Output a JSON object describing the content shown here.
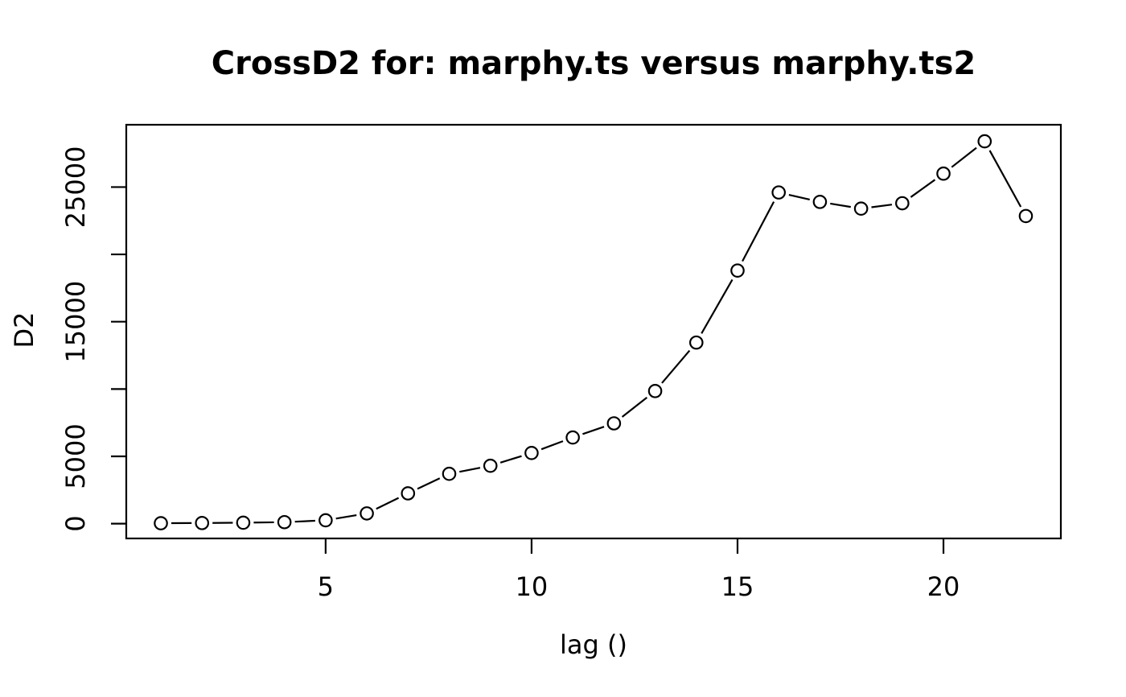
{
  "figure": {
    "title": "CrossD2 for: marphy.ts versus marphy.ts2",
    "x_axis_label": "lag ()",
    "y_axis_label": "D2"
  },
  "chart_data": {
    "type": "line",
    "title": "CrossD2 for: marphy.ts versus marphy.ts2",
    "xlabel": "lag ()",
    "ylabel": "D2",
    "x": [
      1,
      2,
      3,
      4,
      5,
      6,
      7,
      8,
      9,
      10,
      11,
      12,
      13,
      14,
      15,
      16,
      17,
      18,
      19,
      20,
      21,
      22
    ],
    "y": [
      30,
      45,
      70,
      110,
      250,
      760,
      2250,
      3700,
      4300,
      5250,
      6400,
      7450,
      9850,
      13450,
      18800,
      24600,
      23900,
      23400,
      23800,
      26000,
      28400,
      22850
    ],
    "xticks": [
      5,
      10,
      15,
      20
    ],
    "xtick_labels": [
      "5",
      "10",
      "15",
      "20"
    ],
    "yticks": [
      0,
      5000,
      10000,
      15000,
      20000,
      25000
    ],
    "ytick_labels": [
      "0",
      "5000",
      "",
      "15000",
      "",
      "25000"
    ],
    "xlim": [
      0.16,
      22.85
    ],
    "ylim": [
      -1100,
      29630
    ],
    "marker": "open-circle",
    "line_type": "b-segments-with-gaps",
    "grid": false,
    "legend": null,
    "foreground": "#000000",
    "background": "#ffffff"
  }
}
